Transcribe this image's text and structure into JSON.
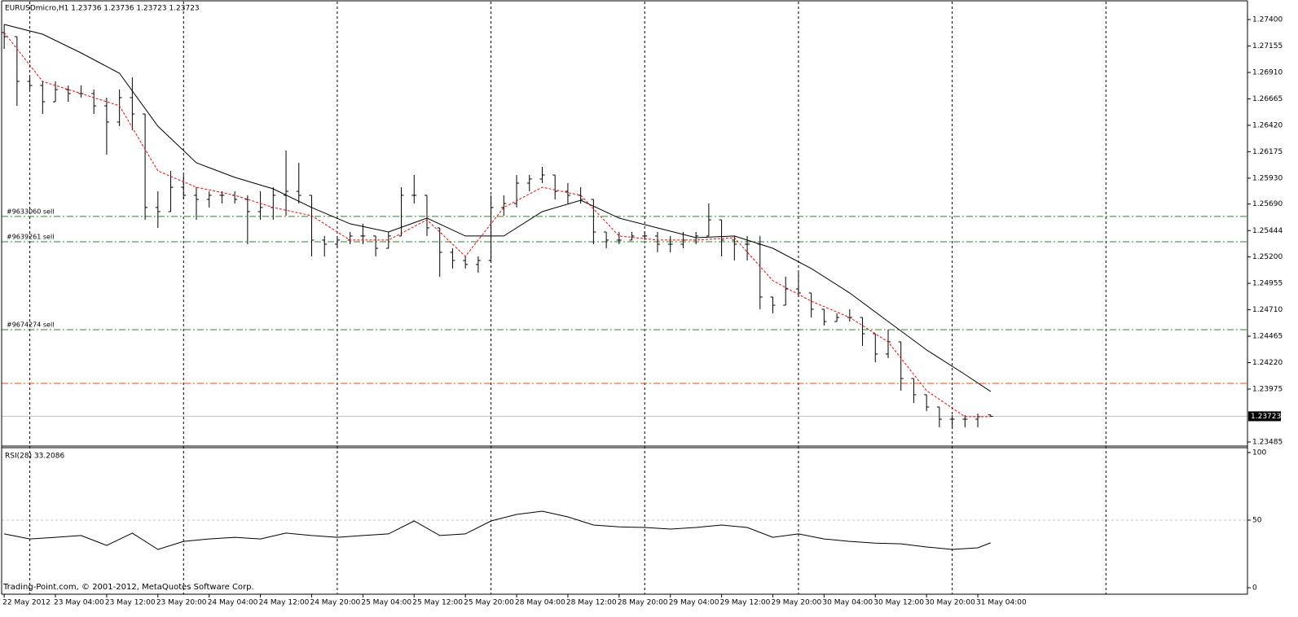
{
  "chart_data": [
    {
      "type": "ohlc",
      "title": "EURUSDmicro,H1  1.23736 1.23736 1.23723 1.23723",
      "x": [
        0,
        2,
        4,
        6,
        8,
        10,
        12,
        14,
        16,
        18,
        20,
        22,
        24,
        26,
        28,
        30,
        32,
        34,
        36,
        38,
        40,
        42,
        44,
        46,
        48,
        50,
        52,
        54,
        56,
        58,
        60,
        62,
        64,
        66,
        68,
        70,
        72,
        74,
        76,
        78,
        80,
        82,
        84,
        86,
        88,
        90,
        92,
        94,
        96,
        98,
        100,
        102,
        104,
        106,
        108,
        110,
        112,
        114,
        116,
        118,
        120,
        122,
        124,
        126,
        128,
        130,
        132,
        134,
        136,
        138,
        140,
        142,
        144,
        146,
        148,
        150,
        152,
        154
      ],
      "open": [
        1.2728,
        1.27242,
        1.26827,
        1.26789,
        1.26638,
        1.26751,
        1.26714,
        1.26714,
        1.266,
        1.2645,
        1.26676,
        1.26525,
        1.25658,
        1.2562,
        1.25846,
        1.25771,
        1.25733,
        1.25771,
        1.25771,
        1.25733,
        1.2562,
        1.25658,
        1.25771,
        1.25808,
        1.25771,
        1.25356,
        1.25318,
        1.25356,
        1.25394,
        1.25394,
        1.2528,
        1.25394,
        1.25771,
        1.25771,
        1.25469,
        1.25243,
        1.25167,
        1.2513,
        1.25167,
        1.25658,
        1.25695,
        1.25884,
        1.25922,
        1.25959,
        1.25808,
        1.25771,
        1.25733,
        1.25431,
        1.25356,
        1.25356,
        1.25394,
        1.25394,
        1.25318,
        1.25318,
        1.25356,
        1.25394,
        1.25544,
        1.25356,
        1.25318,
        1.25318,
        1.24828,
        1.24752,
        1.24903,
        1.24866,
        1.24715,
        1.24601,
        1.24639,
        1.24639,
        1.24488,
        1.243,
        1.24413,
        1.24073,
        1.23923,
        1.23809,
        1.23696,
        1.23696,
        1.23696,
        1.23736
      ],
      "high": [
        1.27355,
        1.27242,
        1.26864,
        1.26827,
        1.26827,
        1.26789,
        1.26789,
        1.26751,
        1.26676,
        1.26751,
        1.26864,
        1.26525,
        1.25808,
        1.25997,
        1.25959,
        1.25846,
        1.25808,
        1.25808,
        1.25808,
        1.25771,
        1.25808,
        1.25846,
        1.26186,
        1.26072,
        1.25771,
        1.25394,
        1.25394,
        1.25431,
        1.25507,
        1.25394,
        1.25431,
        1.25846,
        1.25959,
        1.25771,
        1.25469,
        1.2528,
        1.25205,
        1.25205,
        1.25771,
        1.25771,
        1.25959,
        1.25959,
        1.26035,
        1.25959,
        1.25884,
        1.25846,
        1.25733,
        1.25431,
        1.25431,
        1.25431,
        1.25431,
        1.25431,
        1.25394,
        1.25431,
        1.25431,
        1.25695,
        1.25544,
        1.25394,
        1.25394,
        1.25394,
        1.24828,
        1.25016,
        1.25054,
        1.24866,
        1.24715,
        1.24677,
        1.24715,
        1.24639,
        1.24488,
        1.24526,
        1.24413,
        1.24073,
        1.23923,
        1.23809,
        1.23734,
        1.23734,
        1.23749,
        1.23736
      ],
      "low": [
        1.27128,
        1.266,
        1.26751,
        1.26525,
        1.26638,
        1.26638,
        1.26676,
        1.26525,
        1.26148,
        1.26412,
        1.26374,
        1.25544,
        1.25469,
        1.2562,
        1.25733,
        1.25544,
        1.25658,
        1.25695,
        1.25695,
        1.25318,
        1.25544,
        1.25544,
        1.25582,
        1.25695,
        1.25205,
        1.25205,
        1.2528,
        1.25318,
        1.25318,
        1.25205,
        1.2528,
        1.25394,
        1.25695,
        1.25394,
        1.25016,
        1.25092,
        1.25092,
        1.25054,
        1.25167,
        1.25582,
        1.25658,
        1.25808,
        1.25884,
        1.25733,
        1.25695,
        1.25695,
        1.25318,
        1.2528,
        1.25318,
        1.25356,
        1.25356,
        1.25243,
        1.25243,
        1.2528,
        1.25318,
        1.25394,
        1.25205,
        1.25167,
        1.25167,
        1.24715,
        1.24677,
        1.24752,
        1.24828,
        1.24639,
        1.24564,
        1.24601,
        1.24601,
        1.24375,
        1.24224,
        1.24262,
        1.2396,
        1.23847,
        1.23772,
        1.23621,
        1.23621,
        1.23621,
        1.23621,
        1.23723
      ],
      "close": [
        1.27242,
        1.26827,
        1.26789,
        1.26638,
        1.26751,
        1.26714,
        1.26714,
        1.266,
        1.2645,
        1.26676,
        1.26525,
        1.25658,
        1.2562,
        1.25846,
        1.25771,
        1.25733,
        1.25771,
        1.25771,
        1.25733,
        1.2562,
        1.25658,
        1.25771,
        1.25808,
        1.25771,
        1.25356,
        1.25318,
        1.25356,
        1.25394,
        1.25394,
        1.2528,
        1.25394,
        1.25771,
        1.25771,
        1.25469,
        1.25243,
        1.25167,
        1.2513,
        1.25167,
        1.25658,
        1.25695,
        1.25884,
        1.25922,
        1.25959,
        1.25808,
        1.25771,
        1.25733,
        1.25431,
        1.25356,
        1.25356,
        1.25394,
        1.25394,
        1.25318,
        1.25318,
        1.25356,
        1.25394,
        1.25544,
        1.25356,
        1.25318,
        1.25318,
        1.24828,
        1.24752,
        1.24903,
        1.24866,
        1.24715,
        1.24601,
        1.24639,
        1.24639,
        1.24488,
        1.243,
        1.24413,
        1.24073,
        1.23923,
        1.23809,
        1.23696,
        1.23696,
        1.23696,
        1.23719,
        1.23723
      ],
      "bar_color": "#000000",
      "series": [
        {
          "color": "#000000",
          "dashed": false,
          "x": [
            0,
            6,
            12,
            18,
            24,
            30,
            36,
            42,
            48,
            54,
            60,
            66,
            72,
            78,
            84,
            90,
            96,
            102,
            108,
            114,
            120,
            126,
            132,
            138,
            144,
            150,
            154
          ],
          "values": [
            1.27355,
            1.27264,
            1.27091,
            1.26902,
            1.26412,
            1.26072,
            1.25937,
            1.25831,
            1.25658,
            1.25507,
            1.25431,
            1.2556,
            1.25394,
            1.25394,
            1.2562,
            1.25725,
            1.2556,
            1.25469,
            1.25378,
            1.25394,
            1.2528,
            1.25092,
            1.24866,
            1.24601,
            1.24338,
            1.24111,
            1.23953
          ]
        },
        {
          "color": "#ff0000",
          "dashed": true,
          "x": [
            0,
            6,
            12,
            18,
            24,
            30,
            36,
            42,
            48,
            54,
            60,
            66,
            72,
            78,
            84,
            90,
            96,
            102,
            108,
            114,
            120,
            126,
            132,
            138,
            144,
            150,
            154
          ],
          "values": [
            1.2728,
            1.26827,
            1.26714,
            1.266,
            1.25997,
            1.25846,
            1.25771,
            1.25658,
            1.25582,
            1.25356,
            1.25356,
            1.25544,
            1.25205,
            1.25658,
            1.25846,
            1.25771,
            1.25394,
            1.25356,
            1.25356,
            1.25378,
            1.24979,
            1.2479,
            1.24639,
            1.24413,
            1.2396,
            1.23719,
            1.23719
          ]
        }
      ],
      "hlines": [
        {
          "label": "#9633060 sell",
          "value": 1.25575,
          "color": "#228b22"
        },
        {
          "label": "#9639261 sell",
          "value": 1.25341,
          "color": "#228b22"
        },
        {
          "label": "#9674274 sell",
          "value": 1.24526,
          "color": "#228b22"
        },
        {
          "value": 1.24028,
          "color": "#ff4500"
        }
      ],
      "last": {
        "value": 1.23723,
        "color": "#c0c0c0"
      },
      "xlim": [
        -0.4,
        194.1
      ],
      "xgrid": [
        4,
        28,
        52,
        76,
        100,
        124,
        148,
        172
      ],
      "ylim": [
        1.23447,
        1.27566
      ],
      "yticks": [
        {
          "value": 1.274,
          "label": "1.27400"
        },
        {
          "value": 1.27155,
          "label": "1.27155"
        },
        {
          "value": 1.2691,
          "label": "1.26910"
        },
        {
          "value": 1.26665,
          "label": "1.26665"
        },
        {
          "value": 1.2642,
          "label": "1.26420"
        },
        {
          "value": 1.26175,
          "label": "1.26175"
        },
        {
          "value": 1.2593,
          "label": "1.25930"
        },
        {
          "value": 1.2569,
          "label": "1.25690"
        },
        {
          "value": 1.25444,
          "label": "1.25444"
        },
        {
          "value": 1.252,
          "label": "1.25200"
        },
        {
          "value": 1.24955,
          "label": "1.24955"
        },
        {
          "value": 1.2471,
          "label": "1.24710"
        },
        {
          "value": 1.24465,
          "label": "1.24465"
        },
        {
          "value": 1.2422,
          "label": "1.24220"
        },
        {
          "value": 1.23975,
          "label": "1.23975"
        },
        {
          "value": 1.23485,
          "label": "1.23485"
        }
      ]
    },
    {
      "type": "line",
      "title": "RSI(28) 33.2086",
      "annotation": "Trading-Point.com, © 2001-2012, MetaQuotes Software Corp.",
      "x": [
        0,
        4,
        8,
        12,
        16,
        20,
        24,
        28,
        32,
        36,
        40,
        44,
        48,
        52,
        56,
        60,
        64,
        68,
        72,
        76,
        80,
        84,
        88,
        92,
        96,
        100,
        104,
        108,
        112,
        116,
        120,
        124,
        128,
        132,
        136,
        140,
        144,
        148,
        152,
        154
      ],
      "values": [
        39.8,
        36.1,
        37.3,
        38.6,
        31.3,
        40.4,
        28.3,
        34.3,
        36.1,
        37.3,
        36.1,
        40.4,
        38.6,
        37.3,
        38.6,
        39.8,
        49.4,
        38.6,
        39.8,
        49.4,
        54.2,
        56.6,
        52.4,
        46.4,
        45.0,
        44.6,
        43.4,
        44.6,
        46.4,
        44.6,
        37.3,
        39.8,
        36.1,
        34.3,
        33.0,
        32.5,
        30.1,
        28.3,
        29.5,
        33.2086
      ],
      "color": "#000000",
      "level": 50,
      "xlim": [
        -0.4,
        194.1
      ],
      "ylim": [
        -3.6,
        103.6
      ],
      "yticks": [
        100,
        50,
        0
      ],
      "xticks": [
        {
          "value": 0,
          "label": "22 May 2012"
        },
        {
          "value": 8,
          "label": "23 May 04:00"
        },
        {
          "value": 16,
          "label": "23 May 12:00"
        },
        {
          "value": 24,
          "label": "23 May 20:00"
        },
        {
          "value": 32,
          "label": "24 May 04:00"
        },
        {
          "value": 40,
          "label": "24 May 12:00"
        },
        {
          "value": 48,
          "label": "24 May 20:00"
        },
        {
          "value": 56,
          "label": "25 May 04:00"
        },
        {
          "value": 64,
          "label": "25 May 12:00"
        },
        {
          "value": 72,
          "label": "25 May 20:00"
        },
        {
          "value": 80,
          "label": "28 May 04:00"
        },
        {
          "value": 88,
          "label": "28 May 12:00"
        },
        {
          "value": 96,
          "label": "28 May 20:00"
        },
        {
          "value": 104,
          "label": "29 May 04:00"
        },
        {
          "value": 112,
          "label": "29 May 12:00"
        },
        {
          "value": 120,
          "label": "29 May 20:00"
        },
        {
          "value": 128,
          "label": "30 May 04:00"
        },
        {
          "value": 136,
          "label": "30 May 12:00"
        },
        {
          "value": 144,
          "label": "30 May 20:00"
        },
        {
          "value": 152,
          "label": "31 May 04:00"
        }
      ]
    }
  ]
}
